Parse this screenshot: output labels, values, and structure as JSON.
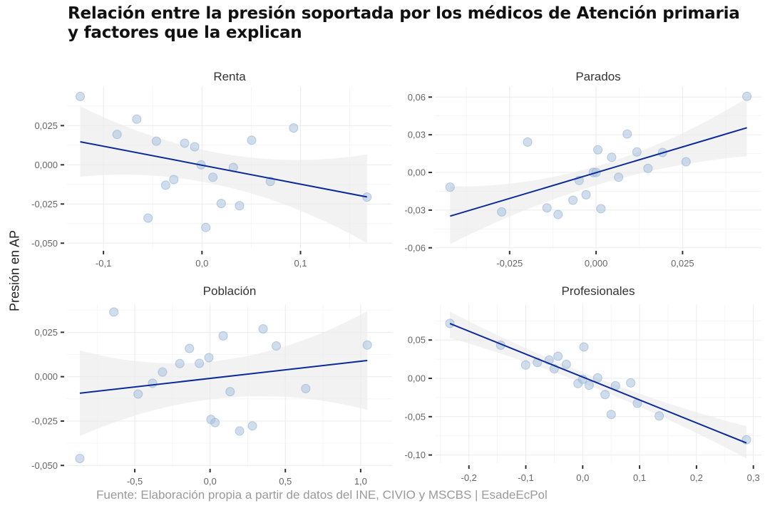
{
  "title_line1": "Relación entre la presión soportada por los médicos de Atención primaria",
  "title_line2": "y factores que la explican",
  "y_axis_label": "Presión en AP",
  "caption": "Fuente: Elaboración propia a partir de datos del INE, CIVIO y MSCBS | EsadeEcPol",
  "colors": {
    "points": "#a9c1dd",
    "fit_line": "#0b2a9a",
    "band": "#ebebeb"
  },
  "chart_data": [
    {
      "type": "scatter",
      "title": "Renta",
      "xlabel": "",
      "ylabel": "Presión en AP",
      "xlim": [
        -0.137,
        0.193
      ],
      "ylim": [
        -0.0535,
        0.0497
      ],
      "xticks": [
        -0.1,
        0.0,
        0.1
      ],
      "xtick_labels": [
        "-0,1",
        "0,0",
        "0,1"
      ],
      "yticks": [
        -0.05,
        -0.025,
        0.0,
        0.025
      ],
      "ytick_labels": [
        "-0,050",
        "-0,025",
        "0,000",
        "0,025"
      ],
      "grid": true,
      "x": [
        -0.1236,
        -0.0662,
        -0.0862,
        -0.0463,
        -0.0176,
        -0.0074,
        -0.0009,
        0.0111,
        0.0318,
        0.0504,
        0.093,
        0.0694,
        0.1675,
        -0.0369,
        -0.0286,
        0.0195,
        0.0381,
        -0.0547,
        0.0039
      ],
      "y": [
        0.0436,
        0.0291,
        0.0194,
        0.0151,
        0.0138,
        0.0115,
        0.0,
        -0.0079,
        -0.0017,
        0.0157,
        0.0235,
        -0.0106,
        -0.0206,
        -0.013,
        -0.0094,
        -0.0247,
        -0.0261,
        -0.034,
        -0.04
      ],
      "fit": {
        "x": [
          -0.1236,
          0.1675
        ],
        "y": [
          0.0147,
          -0.0205
        ]
      },
      "band": {
        "x": [
          -0.1236,
          0.0,
          0.1675
        ],
        "upper": [
          0.0374,
          0.0097,
          0.0066
        ],
        "lower": [
          -0.0076,
          -0.0108,
          -0.0499
        ]
      }
    },
    {
      "type": "scatter",
      "title": "Parados",
      "xlabel": "",
      "ylabel": "Presión en AP",
      "xlim": [
        -0.0466,
        0.0478
      ],
      "ylim": [
        -0.0607,
        0.0681
      ],
      "xticks": [
        -0.025,
        0.0,
        0.025
      ],
      "xtick_labels": [
        "-0,025",
        "0,000",
        "0,025"
      ],
      "yticks": [
        -0.06,
        -0.03,
        0.0,
        0.03,
        0.06
      ],
      "ytick_labels": [
        "-0,06",
        "-0,03",
        "0,00",
        "0,03",
        "0,06"
      ],
      "grid": true,
      "x": [
        -0.0422,
        -0.0273,
        -0.0198,
        -0.0142,
        -0.011,
        -0.0067,
        -0.0049,
        -0.0029,
        -0.0008,
        0.0,
        0.0005,
        0.0014,
        0.0045,
        0.0065,
        0.009,
        0.0118,
        0.015,
        0.0192,
        0.026,
        0.0436
      ],
      "y": [
        -0.0117,
        -0.0314,
        0.0242,
        -0.0282,
        -0.0335,
        -0.0221,
        -0.0064,
        -0.0178,
        0.0,
        0.0,
        0.018,
        -0.0289,
        0.0121,
        -0.0038,
        0.0306,
        0.0163,
        0.0032,
        0.0159,
        0.0085,
        0.0606
      ],
      "fit": {
        "x": [
          -0.0422,
          0.0436
        ],
        "y": [
          -0.0348,
          0.0356
        ]
      },
      "band": {
        "x": [
          -0.0422,
          0.0,
          0.0436
        ],
        "upper": [
          -0.0112,
          0.0049,
          0.0592
        ],
        "lower": [
          -0.0571,
          -0.0102,
          0.0129
        ]
      }
    },
    {
      "type": "scatter",
      "title": "Población",
      "xlabel": "",
      "ylabel": "Presión en AP",
      "xlim": [
        -0.95,
        1.209
      ],
      "ylim": [
        -0.0507,
        0.0408
      ],
      "xticks": [
        -0.5,
        0.0,
        0.5,
        1.0
      ],
      "xtick_labels": [
        "-0,5",
        "0,0",
        "0,5",
        "1,0"
      ],
      "yticks": [
        -0.05,
        -0.025,
        0.0,
        0.025
      ],
      "ytick_labels": [
        "-0,050",
        "-0,025",
        "0,000",
        "0,025"
      ],
      "grid": true,
      "x": [
        -0.865,
        -0.639,
        -0.478,
        -0.382,
        -0.316,
        -0.201,
        -0.137,
        -0.071,
        -0.008,
        0.006,
        0.033,
        0.087,
        0.133,
        0.196,
        0.281,
        0.352,
        0.44,
        0.635,
        1.044
      ],
      "y": [
        -0.0461,
        0.0364,
        -0.0098,
        -0.0037,
        0.0026,
        0.0074,
        0.0159,
        0.0075,
        0.0107,
        -0.0241,
        -0.0259,
        0.023,
        -0.0084,
        -0.0306,
        -0.0277,
        0.0269,
        0.0173,
        -0.0067,
        0.0178
      ],
      "fit": {
        "x": [
          -0.865,
          1.044
        ],
        "y": [
          -0.0093,
          0.0091
        ]
      },
      "band": {
        "x": [
          -0.865,
          0.1,
          1.044
        ],
        "upper": [
          0.0148,
          0.0095,
          0.0369
        ],
        "lower": [
          -0.0335,
          -0.0119,
          -0.0187
        ]
      }
    },
    {
      "type": "scatter",
      "title": "Profesionales",
      "xlabel": "",
      "ylabel": "Presión en AP",
      "xlim": [
        -0.2598,
        0.3142
      ],
      "ylim": [
        -0.1106,
        0.0967
      ],
      "xticks": [
        -0.2,
        -0.1,
        0.0,
        0.1,
        0.2,
        0.3
      ],
      "xtick_labels": [
        "-0,2",
        "-0,1",
        "0,0",
        "0,1",
        "0,2",
        "0,3"
      ],
      "yticks": [
        -0.1,
        -0.05,
        0.0,
        0.05
      ],
      "ytick_labels": [
        "-0,10",
        "-0,05",
        "0,00",
        "0,05"
      ],
      "grid": true,
      "x": [
        -0.2335,
        -0.1441,
        -0.1003,
        -0.0797,
        -0.0589,
        -0.0434,
        -0.0501,
        -0.0288,
        0.0021,
        -0.0083,
        0.0,
        0.0113,
        0.0263,
        0.0393,
        0.0576,
        0.0501,
        0.0844,
        0.0961,
        0.1345,
        0.2878
      ],
      "y": [
        0.0717,
        0.0433,
        0.0174,
        0.0207,
        0.0239,
        0.0288,
        0.0124,
        0.0183,
        0.0409,
        -0.0068,
        -0.0012,
        -0.009,
        0.0006,
        -0.0211,
        -0.0096,
        -0.0471,
        -0.0059,
        -0.0325,
        -0.049,
        -0.0802
      ],
      "fit": {
        "x": [
          -0.2335,
          0.2878
        ],
        "y": [
          0.0715,
          -0.0843
        ]
      },
      "band": {
        "x": [
          -0.2335,
          0.0,
          0.2878
        ],
        "upper": [
          0.0871,
          0.0079,
          -0.0625
        ],
        "lower": [
          0.0527,
          -0.0061,
          -0.1043
        ]
      }
    }
  ]
}
